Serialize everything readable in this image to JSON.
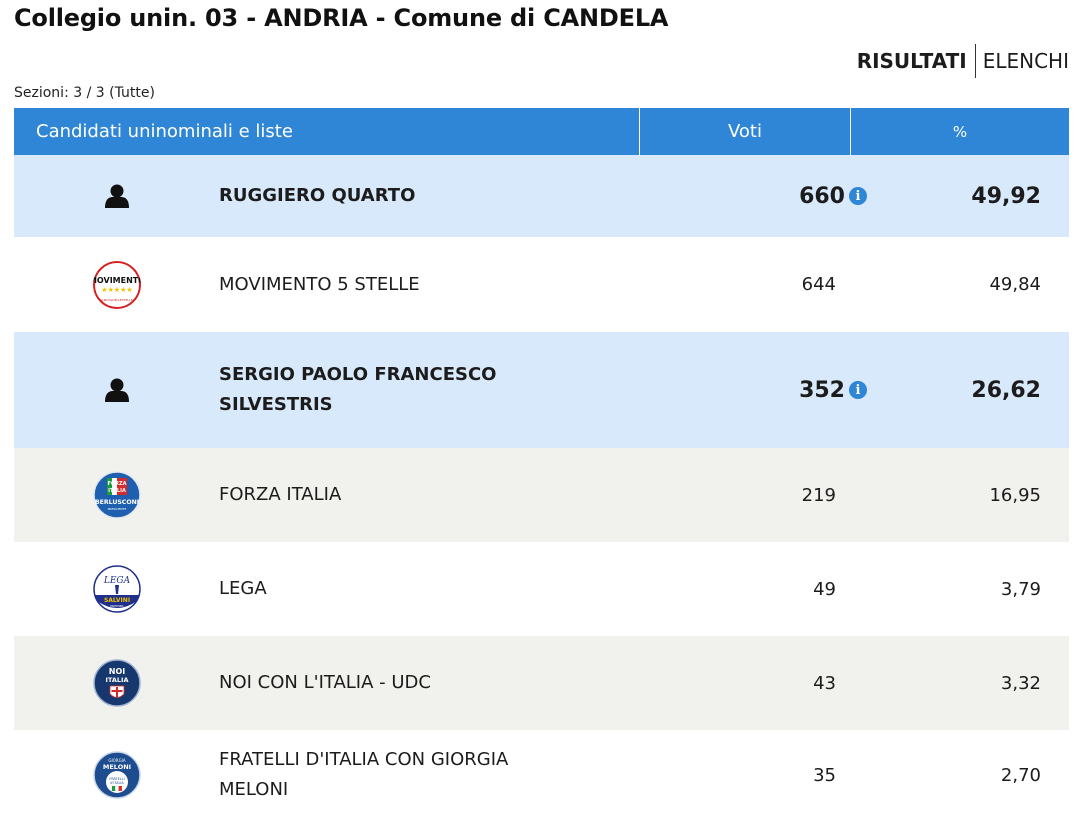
{
  "title": "Collegio unin. 03 - ANDRIA - Comune di CANDELA",
  "tabs": {
    "results": "RISULTATI",
    "lists": "ELENCHI"
  },
  "sections": "Sezioni: 3 / 3 (Tutte)",
  "table": {
    "headers": {
      "name": "Candidati uninominali e liste",
      "votes": "Voti",
      "pct": "%"
    },
    "rows": [
      {
        "type": "candidate",
        "name_lines": [
          "RUGGIERO QUARTO"
        ],
        "votes": "660",
        "pct": "49,92"
      },
      {
        "type": "list",
        "logo": "movimento-5-stelle-logo",
        "name_lines": [
          "MOVIMENTO 5 STELLE"
        ],
        "votes": "644",
        "pct": "49,84"
      },
      {
        "type": "candidate",
        "name_lines": [
          "SERGIO PAOLO FRANCESCO",
          "SILVESTRIS"
        ],
        "votes": "352",
        "pct": "26,62"
      },
      {
        "type": "list",
        "logo": "forza-italia-logo",
        "name_lines": [
          "FORZA ITALIA"
        ],
        "votes": "219",
        "pct": "16,95"
      },
      {
        "type": "list",
        "logo": "lega-logo",
        "name_lines": [
          "LEGA"
        ],
        "votes": "49",
        "pct": "3,79"
      },
      {
        "type": "list",
        "logo": "noi-con-italia-logo",
        "name_lines": [
          "NOI CON L'ITALIA - UDC"
        ],
        "votes": "43",
        "pct": "3,32"
      },
      {
        "type": "list",
        "logo": "fratelli-italia-logo",
        "name_lines": [
          "FRATELLI D'ITALIA CON GIORGIA",
          "MELONI"
        ],
        "votes": "35",
        "pct": "2,70"
      }
    ]
  },
  "icons": {
    "candidate": "person-icon",
    "info": "info-icon",
    "info_glyph": "i"
  },
  "logo_text": {
    "m5s": [
      "MOVIMENTO",
      "★★★★★",
      "ILBLOGDELLESTELLE"
    ],
    "fi": [
      "FORZA",
      "ITALIA",
      "BERLUSCONI",
      "PRESIDENTE"
    ],
    "lega": [
      "LEGA",
      "SALVINI",
      "PREMIER"
    ],
    "noi": [
      "NOI",
      "ITALIA"
    ],
    "fdi": [
      "GIORGIA",
      "MELONI",
      "FRATELLI",
      "d'ITALIA"
    ]
  },
  "colors": {
    "header": "#2f86d6",
    "candidate_row": "#d7e9fb",
    "alt_row": "#f1f1ed"
  }
}
